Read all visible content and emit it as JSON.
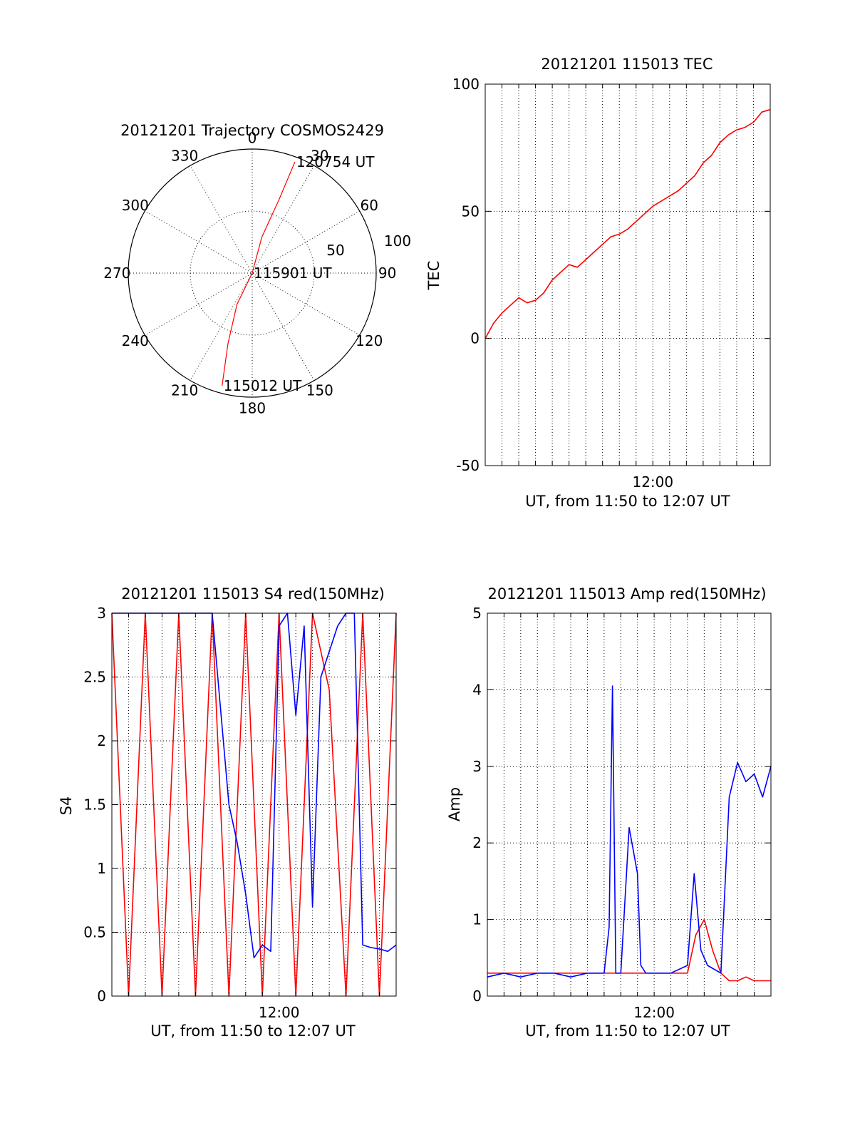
{
  "chart_data": [
    {
      "type": "polar",
      "title": "20121201 Trajectory COSMOS2429",
      "azimuth_ticks": [
        "0",
        "30",
        "60",
        "90",
        "120",
        "150",
        "180",
        "210",
        "240",
        "270",
        "300",
        "330"
      ],
      "radial_ticks": [
        "50",
        "100"
      ],
      "series": [
        {
          "color": "#ff0000",
          "points": [
            {
              "azimuth_deg": 195,
              "zenith": 94
            },
            {
              "azimuth_deg": 199,
              "zenith": 60
            },
            {
              "azimuth_deg": 206,
              "zenith": 28
            },
            {
              "azimuth_deg": 0,
              "zenith": 0
            },
            {
              "azimuth_deg": 15,
              "zenith": 30
            },
            {
              "azimuth_deg": 20,
              "zenith": 62
            },
            {
              "azimuth_deg": 21,
              "zenith": 96
            }
          ]
        }
      ],
      "annotations": [
        {
          "text": "120754 UT",
          "azimuth_deg": 21,
          "zenith": 96
        },
        {
          "text": "115901 UT",
          "azimuth_deg": 0,
          "zenith": 0
        },
        {
          "text": "115012 UT",
          "azimuth_deg": 195,
          "zenith": 94
        }
      ],
      "grid": true
    },
    {
      "type": "line",
      "title": "20121201 115013 TEC",
      "xlabel": "UT, from 11:50 to 12:07 UT",
      "ylabel": "TEC",
      "xlim": [
        0,
        17
      ],
      "ylim": [
        -50,
        100
      ],
      "yticks": [
        "-50",
        "0",
        "50",
        "100"
      ],
      "xtick_labels": [
        {
          "at_minute": 10,
          "label": "12:00"
        }
      ],
      "grid": true,
      "series": [
        {
          "color": "#ff0000",
          "x": [
            0,
            0.5,
            1,
            1.5,
            2,
            2.5,
            3,
            3.5,
            4,
            4.5,
            5,
            5.5,
            6,
            6.5,
            7,
            7.5,
            8,
            8.5,
            9,
            9.5,
            10,
            10.5,
            11,
            11.5,
            12,
            12.5,
            13,
            13.5,
            14,
            14.5,
            15,
            15.5,
            16,
            16.5,
            17
          ],
          "y": [
            0,
            6,
            10,
            13,
            16,
            14,
            15,
            18,
            23,
            26,
            29,
            28,
            31,
            34,
            37,
            40,
            41,
            43,
            46,
            49,
            52,
            54,
            56,
            58,
            61,
            64,
            69,
            72,
            77,
            80,
            82,
            83,
            85,
            89,
            90
          ]
        }
      ]
    },
    {
      "type": "line",
      "title": "20121201 115013 S4 red(150MHz)",
      "xlabel": "UT, from 11:50 to 12:07 UT",
      "ylabel": "S4",
      "xlim": [
        0,
        17
      ],
      "ylim": [
        0,
        3
      ],
      "yticks": [
        "0",
        "0.5",
        "1",
        "1.5",
        "2",
        "2.5",
        "3"
      ],
      "xtick_labels": [
        {
          "at_minute": 10,
          "label": "12:00"
        }
      ],
      "grid": true,
      "series": [
        {
          "name": "",
          "color": "#ff0000",
          "x": [
            0,
            1,
            2,
            3,
            4,
            5,
            6,
            7,
            8,
            9,
            10,
            11,
            12,
            13,
            14,
            15,
            16,
            17
          ],
          "y": [
            3,
            0,
            3,
            0,
            3,
            0,
            3,
            0,
            3,
            0,
            3,
            0,
            3,
            2.4,
            0,
            3,
            0,
            3
          ]
        },
        {
          "name": "",
          "color": "#0000ff",
          "x": [
            0,
            2,
            4,
            6,
            7,
            7.5,
            8,
            8.5,
            9,
            9.5,
            10,
            10.5,
            11,
            11.5,
            12,
            12.5,
            13,
            13.5,
            14,
            14.5,
            15,
            15.5,
            16,
            16.5,
            17
          ],
          "y": [
            3,
            3,
            3,
            3,
            1.5,
            1.2,
            0.8,
            0.3,
            0.4,
            0.35,
            2.9,
            3,
            2.2,
            2.9,
            0.7,
            2.5,
            2.7,
            2.9,
            3,
            3,
            0.4,
            0.38,
            0.37,
            0.35,
            0.4
          ]
        }
      ]
    },
    {
      "type": "line",
      "title": "20121201 115013 Amp red(150MHz)",
      "xlabel": "UT, from 11:50 to 12:07 UT",
      "ylabel": "Amp",
      "xlim": [
        0,
        17
      ],
      "ylim": [
        0,
        5
      ],
      "yticks": [
        "0",
        "1",
        "2",
        "3",
        "4",
        "5"
      ],
      "xtick_labels": [
        {
          "at_minute": 10,
          "label": "12:00"
        }
      ],
      "grid": true,
      "series": [
        {
          "name": "",
          "color": "#ff0000",
          "x": [
            0,
            1,
            2,
            3,
            4,
            5,
            6,
            7,
            8,
            9,
            10,
            11,
            12,
            12.5,
            13,
            13.5,
            14,
            14.5,
            15,
            15.5,
            16,
            16.5,
            17
          ],
          "y": [
            0.3,
            0.3,
            0.3,
            0.3,
            0.3,
            0.3,
            0.3,
            0.3,
            0.3,
            0.3,
            0.3,
            0.3,
            0.3,
            0.8,
            1.0,
            0.6,
            0.3,
            0.2,
            0.2,
            0.25,
            0.2,
            0.2,
            0.2
          ]
        },
        {
          "name": "",
          "color": "#0000ff",
          "x": [
            0,
            1,
            2,
            3,
            4,
            5,
            6,
            7,
            7.3,
            7.5,
            7.7,
            8,
            8.5,
            9,
            9.2,
            9.5,
            10,
            11,
            12,
            12.4,
            12.8,
            13.2,
            14,
            14.5,
            15,
            15.5,
            16,
            16.5,
            17
          ],
          "y": [
            0.25,
            0.3,
            0.25,
            0.3,
            0.3,
            0.25,
            0.3,
            0.3,
            0.9,
            4.05,
            0.3,
            0.3,
            2.2,
            1.6,
            0.4,
            0.3,
            0.3,
            0.3,
            0.4,
            1.6,
            0.6,
            0.4,
            0.3,
            2.6,
            3.05,
            2.8,
            2.9,
            2.6,
            3.0
          ]
        }
      ]
    }
  ]
}
